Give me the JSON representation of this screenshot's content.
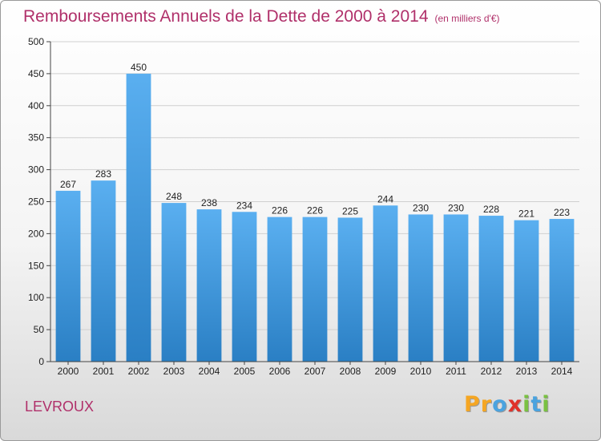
{
  "header": {
    "title": "Remboursements Annuels de la Dette de 2000 à 2014",
    "unit": "(en milliers d'€)"
  },
  "footer": {
    "city": "LEVROUX",
    "logo_letters": [
      "P",
      "r",
      "o",
      "x",
      "i",
      "t",
      "i"
    ]
  },
  "colors": {
    "title": "#b0306a",
    "bar_top": "#5aaff0",
    "bar_bottom": "#2a7fc4",
    "logo": [
      "#f5a623",
      "#f5a623",
      "#4aa3df",
      "#e0312a",
      "#7ac142",
      "#4aa3df",
      "#7ac142"
    ]
  },
  "chart_data": {
    "type": "bar",
    "title": "Remboursements Annuels de la Dette de 2000 à 2014",
    "ylabel": "",
    "xlabel": "",
    "categories": [
      "2000",
      "2001",
      "2002",
      "2003",
      "2004",
      "2005",
      "2006",
      "2007",
      "2008",
      "2009",
      "2010",
      "2011",
      "2012",
      "2013",
      "2014"
    ],
    "values": [
      267,
      283,
      450,
      248,
      238,
      234,
      226,
      226,
      225,
      244,
      230,
      230,
      228,
      221,
      223
    ],
    "ylim": [
      0,
      500
    ],
    "yticks": [
      0,
      50,
      100,
      150,
      200,
      250,
      300,
      350,
      400,
      450,
      500
    ],
    "grid": true,
    "legend": "none"
  }
}
